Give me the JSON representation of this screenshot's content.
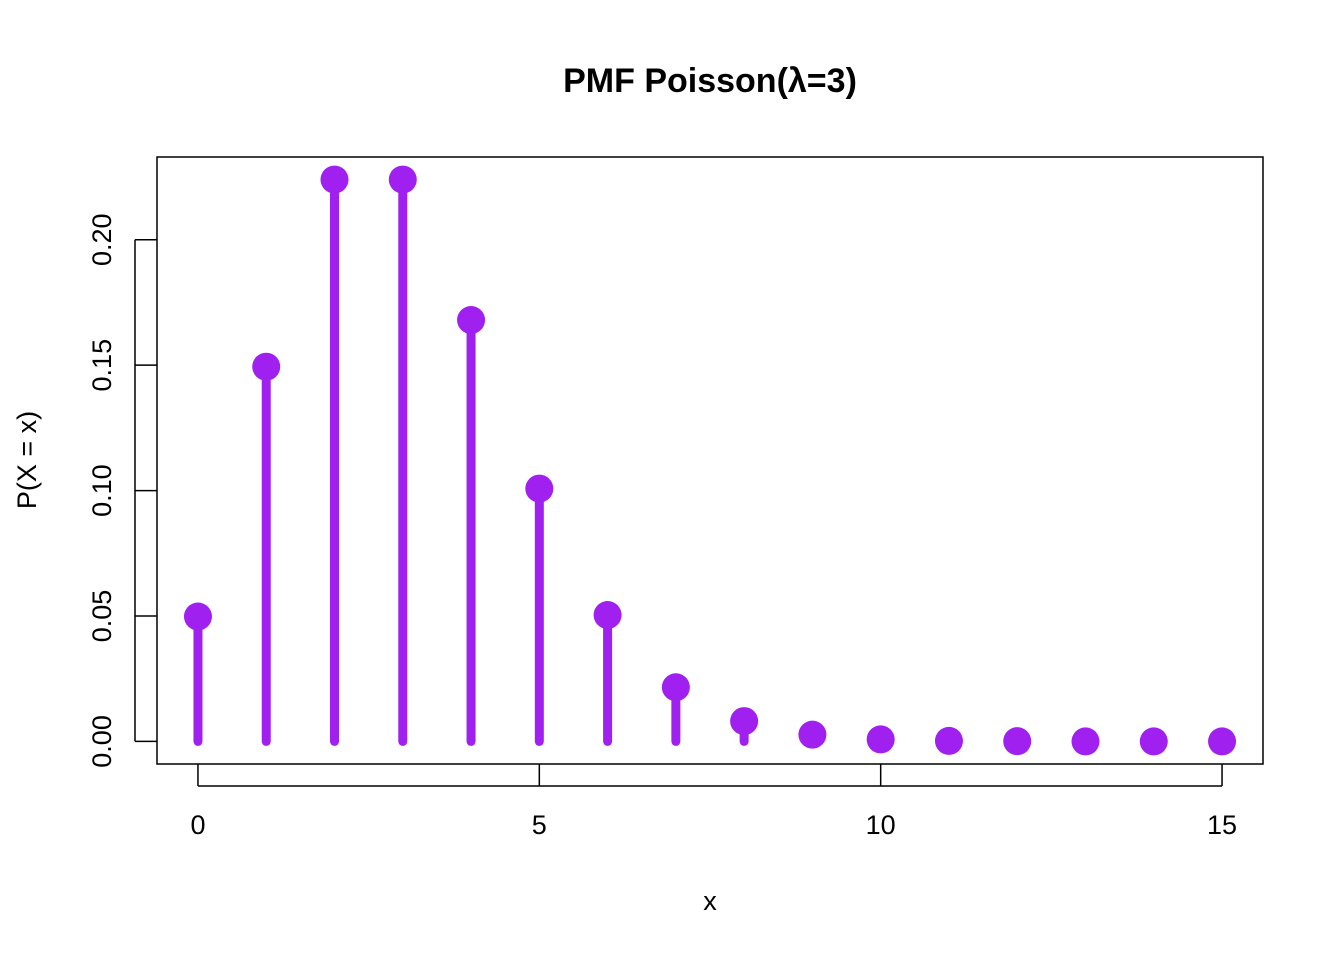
{
  "chart_data": {
    "type": "stem",
    "title": "PMF Poisson(λ=3)",
    "xlabel": "x",
    "ylabel": "P(X = x)",
    "x": [
      0,
      1,
      2,
      3,
      4,
      5,
      6,
      7,
      8,
      9,
      10,
      11,
      12,
      13,
      14,
      15
    ],
    "values": [
      0.0498,
      0.1494,
      0.224,
      0.224,
      0.168,
      0.1008,
      0.0504,
      0.0216,
      0.0081,
      0.0027,
      0.0008,
      0.0002,
      0.0001,
      0.0,
      0.0,
      0.0
    ],
    "x_ticks": [
      "0",
      "5",
      "10",
      "15"
    ],
    "y_ticks": [
      "0.00",
      "0.05",
      "0.10",
      "0.15",
      "0.20"
    ],
    "xlim": [
      -0.6,
      15.6
    ],
    "ylim": [
      -0.009,
      0.233
    ],
    "color": "#A020F0",
    "grid": false,
    "legend": "none"
  }
}
